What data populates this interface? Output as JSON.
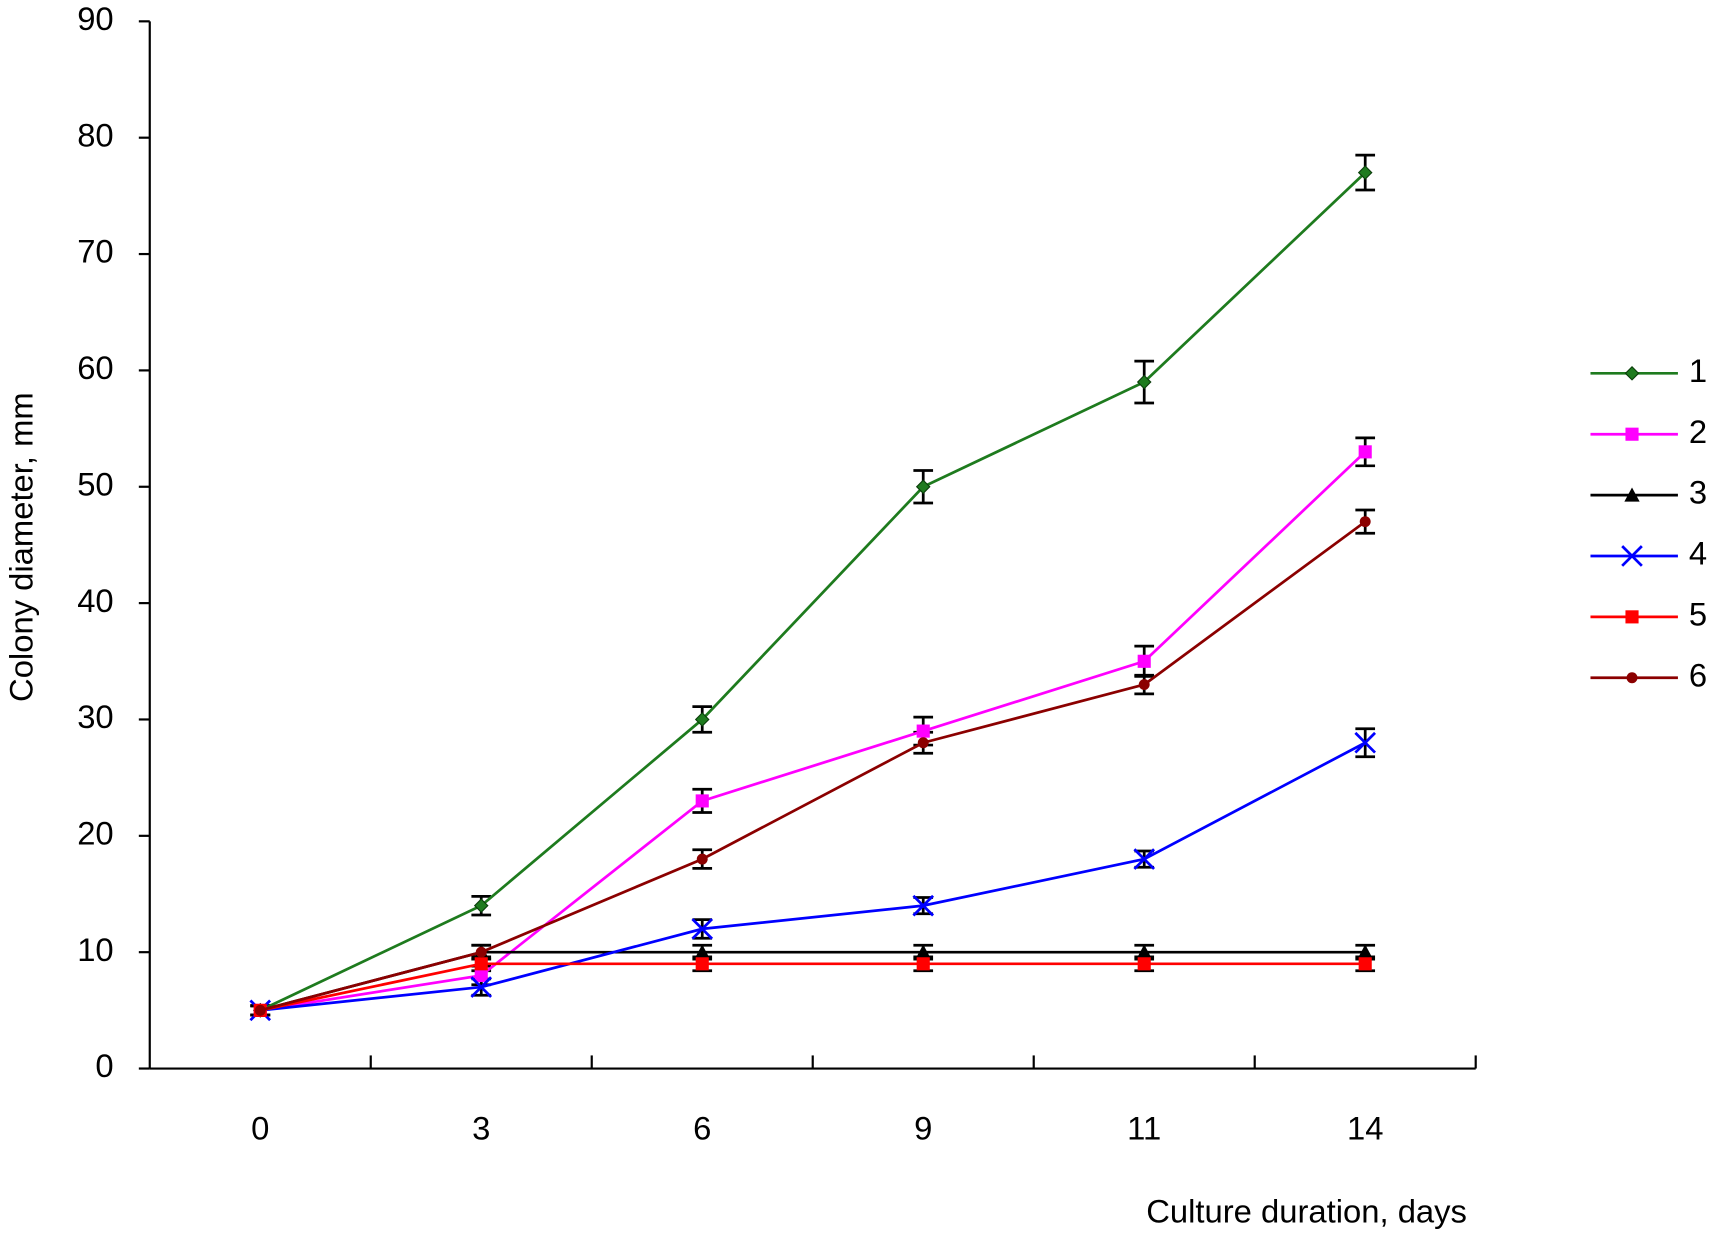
{
  "chart_data": {
    "type": "line",
    "x_label": "Culture duration, days",
    "y_label": "Colony diameter, mm",
    "categories": [
      "0",
      "3",
      "6",
      "9",
      "11",
      "14"
    ],
    "ylim": [
      0,
      90
    ],
    "yticks": [
      0,
      10,
      20,
      30,
      40,
      50,
      60,
      70,
      80,
      90
    ],
    "legend": "right",
    "error_color": "#000000",
    "series": [
      {
        "name": "1",
        "color": "#1e7b1e",
        "marker": "diamond",
        "values": [
          5,
          14,
          30,
          50,
          59,
          77
        ],
        "errors": [
          0.4,
          0.8,
          1.1,
          1.4,
          1.8,
          1.5
        ]
      },
      {
        "name": "2",
        "color": "#ff00ff",
        "marker": "square",
        "values": [
          5,
          8,
          23,
          29,
          35,
          53
        ],
        "errors": [
          0.4,
          0.8,
          1.0,
          1.2,
          1.3,
          1.2
        ]
      },
      {
        "name": "3",
        "color": "#000000",
        "marker": "triangle",
        "values": [
          5,
          10,
          10,
          10,
          10,
          10
        ],
        "errors": [
          0.4,
          0.6,
          0.6,
          0.6,
          0.6,
          0.6
        ]
      },
      {
        "name": "4",
        "color": "#0000ff",
        "marker": "x",
        "values": [
          5,
          7,
          12,
          14,
          18,
          28
        ],
        "errors": [
          0.4,
          0.7,
          0.8,
          0.7,
          0.7,
          1.2
        ]
      },
      {
        "name": "5",
        "color": "#ff0000",
        "marker": "square",
        "values": [
          5,
          9,
          9,
          9,
          9,
          9
        ],
        "errors": [
          0.4,
          0.6,
          0.6,
          0.6,
          0.6,
          0.6
        ]
      },
      {
        "name": "6",
        "color": "#8b0000",
        "marker": "circle",
        "values": [
          5,
          10,
          18,
          28,
          33,
          47
        ],
        "errors": [
          0.4,
          0.6,
          0.8,
          0.9,
          0.8,
          1.0
        ]
      }
    ]
  }
}
